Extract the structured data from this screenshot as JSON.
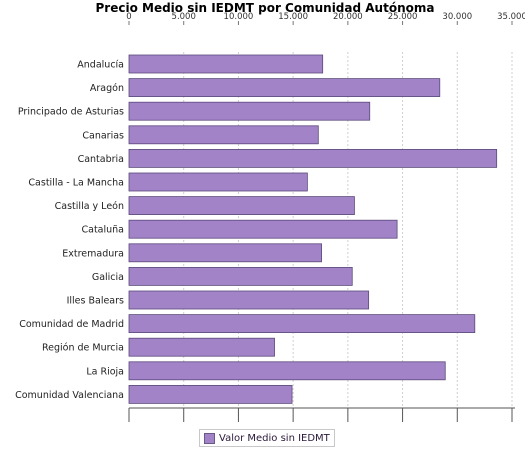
{
  "chart_data": {
    "type": "bar",
    "orientation": "horizontal",
    "title": "Precio Medio sin IEDMT por Comunidad Autónoma",
    "xlabel": "",
    "ylabel": "",
    "xlim": [
      0,
      35000
    ],
    "ticks": [
      "0",
      "5.000",
      "10.000",
      "15.000",
      "20.000",
      "25.000",
      "30.000",
      "35.000"
    ],
    "tick_values": [
      0,
      5000,
      10000,
      15000,
      20000,
      25000,
      30000,
      35000
    ],
    "grid": true,
    "legend_position": "bottom",
    "bar_color": "#a383c8",
    "categories": [
      "Andalucía",
      "Aragón",
      "Principado de Asturias",
      "Canarias",
      "Cantabria",
      "Castilla - La Mancha",
      "Castilla y León",
      "Cataluña",
      "Extremadura",
      "Galicia",
      "Illes Balears",
      "Comunidad de Madrid",
      "Región de Murcia",
      "La Rioja",
      "Comunidad Valenciana"
    ],
    "series": [
      {
        "name": "Valor Medio sin IEDMT",
        "values": [
          17700,
          28400,
          22000,
          17300,
          33600,
          16300,
          20600,
          24500,
          17600,
          20400,
          21900,
          31600,
          13300,
          28900,
          14900
        ]
      }
    ]
  }
}
